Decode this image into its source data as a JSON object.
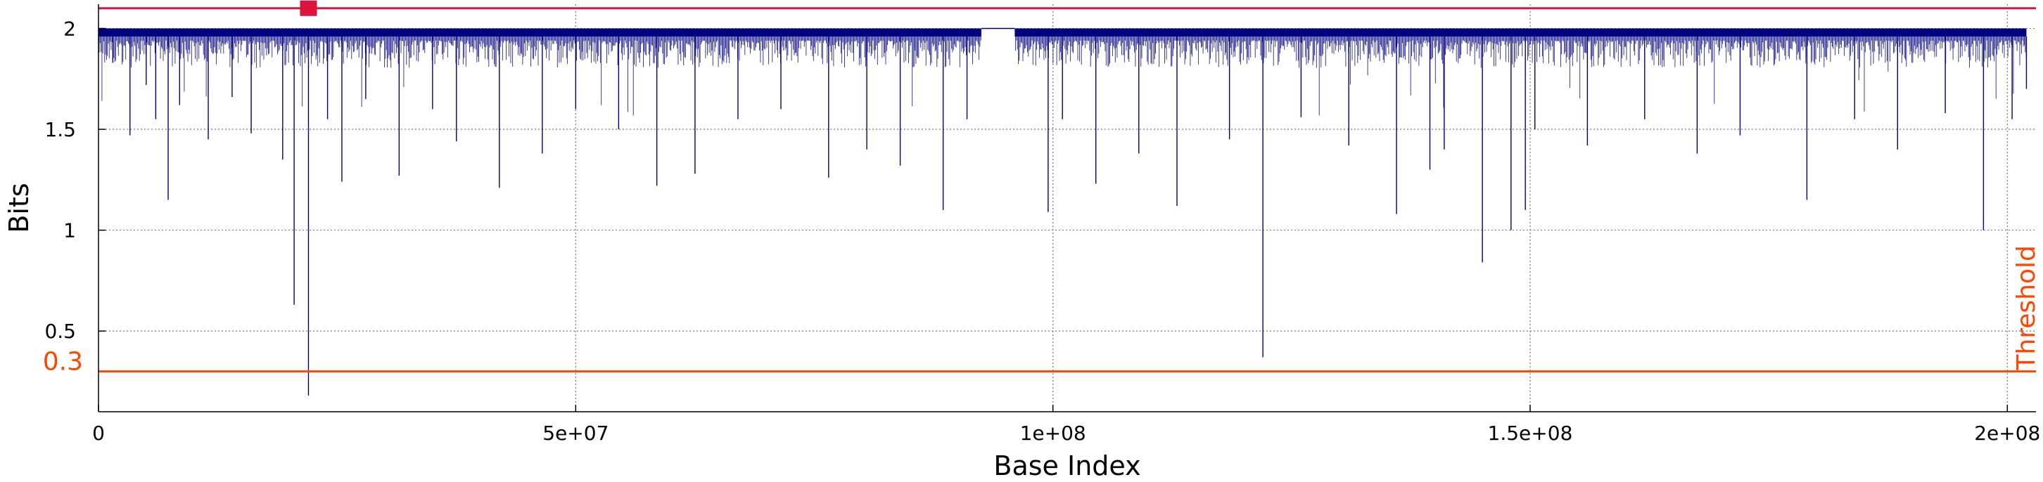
{
  "chart_data": {
    "type": "line",
    "xlabel": "Base Index",
    "ylabel": "Bits",
    "xlim": [
      0,
      203000000
    ],
    "ylim": [
      0.1,
      2.12
    ],
    "xticks": [
      {
        "value": 0,
        "label": "0"
      },
      {
        "value": 50000000,
        "label": "5e+07"
      },
      {
        "value": 100000000,
        "label": "1e+08"
      },
      {
        "value": 150000000,
        "label": "1.5e+08"
      },
      {
        "value": 200000000,
        "label": "2e+08"
      }
    ],
    "yticks": [
      {
        "value": 0.5,
        "label": "0.5"
      },
      {
        "value": 1,
        "label": "1"
      },
      {
        "value": 1.5,
        "label": "1.5"
      },
      {
        "value": 2,
        "label": "2"
      }
    ],
    "grid": true,
    "series_color": "#000080",
    "gap": [
      92500000,
      96000000
    ],
    "spikes": [
      {
        "x": 1500000,
        "y": 1.83
      },
      {
        "x": 3300000,
        "y": 1.47
      },
      {
        "x": 5000000,
        "y": 1.72
      },
      {
        "x": 6000000,
        "y": 1.55
      },
      {
        "x": 7300000,
        "y": 1.15
      },
      {
        "x": 8500000,
        "y": 1.62
      },
      {
        "x": 11500000,
        "y": 1.45
      },
      {
        "x": 14000000,
        "y": 1.66
      },
      {
        "x": 16000000,
        "y": 1.48
      },
      {
        "x": 19300000,
        "y": 1.35
      },
      {
        "x": 20500000,
        "y": 0.63
      },
      {
        "x": 22000000,
        "y": 0.18
      },
      {
        "x": 24000000,
        "y": 1.55
      },
      {
        "x": 25500000,
        "y": 1.24
      },
      {
        "x": 28000000,
        "y": 1.65
      },
      {
        "x": 31500000,
        "y": 1.27
      },
      {
        "x": 35000000,
        "y": 1.6
      },
      {
        "x": 37500000,
        "y": 1.44
      },
      {
        "x": 42000000,
        "y": 1.21
      },
      {
        "x": 46500000,
        "y": 1.38
      },
      {
        "x": 50000000,
        "y": 1.6
      },
      {
        "x": 54500000,
        "y": 1.5
      },
      {
        "x": 58500000,
        "y": 1.22
      },
      {
        "x": 62500000,
        "y": 1.28
      },
      {
        "x": 67000000,
        "y": 1.55
      },
      {
        "x": 71500000,
        "y": 1.6
      },
      {
        "x": 76500000,
        "y": 1.26
      },
      {
        "x": 80500000,
        "y": 1.4
      },
      {
        "x": 84000000,
        "y": 1.32
      },
      {
        "x": 88500000,
        "y": 1.1
      },
      {
        "x": 91000000,
        "y": 1.55
      },
      {
        "x": 99500000,
        "y": 1.09
      },
      {
        "x": 101000000,
        "y": 1.55
      },
      {
        "x": 104500000,
        "y": 1.23
      },
      {
        "x": 109000000,
        "y": 1.38
      },
      {
        "x": 113000000,
        "y": 1.12
      },
      {
        "x": 118500000,
        "y": 1.45
      },
      {
        "x": 122000000,
        "y": 0.37
      },
      {
        "x": 126000000,
        "y": 1.56
      },
      {
        "x": 131000000,
        "y": 1.42
      },
      {
        "x": 136000000,
        "y": 1.08
      },
      {
        "x": 139500000,
        "y": 1.3
      },
      {
        "x": 141000000,
        "y": 1.4
      },
      {
        "x": 145000000,
        "y": 0.84
      },
      {
        "x": 148000000,
        "y": 1.0
      },
      {
        "x": 149500000,
        "y": 1.1
      },
      {
        "x": 150500000,
        "y": 1.5
      },
      {
        "x": 156000000,
        "y": 1.42
      },
      {
        "x": 162000000,
        "y": 1.55
      },
      {
        "x": 167500000,
        "y": 1.38
      },
      {
        "x": 172000000,
        "y": 1.47
      },
      {
        "x": 179000000,
        "y": 1.15
      },
      {
        "x": 184000000,
        "y": 1.55
      },
      {
        "x": 188500000,
        "y": 1.4
      },
      {
        "x": 193500000,
        "y": 1.58
      },
      {
        "x": 197500000,
        "y": 1.0
      },
      {
        "x": 200500000,
        "y": 1.55
      },
      {
        "x": 202000000,
        "y": 1.7
      }
    ],
    "threshold": {
      "value": 0.3,
      "value_label": "0.3",
      "label": "Threshold",
      "color": "#ff4500"
    },
    "reference_line": {
      "value": 2.1,
      "color": "#dc143c"
    },
    "marker": {
      "x": 22000000,
      "y": 2.1,
      "color": "#dc143c"
    }
  }
}
